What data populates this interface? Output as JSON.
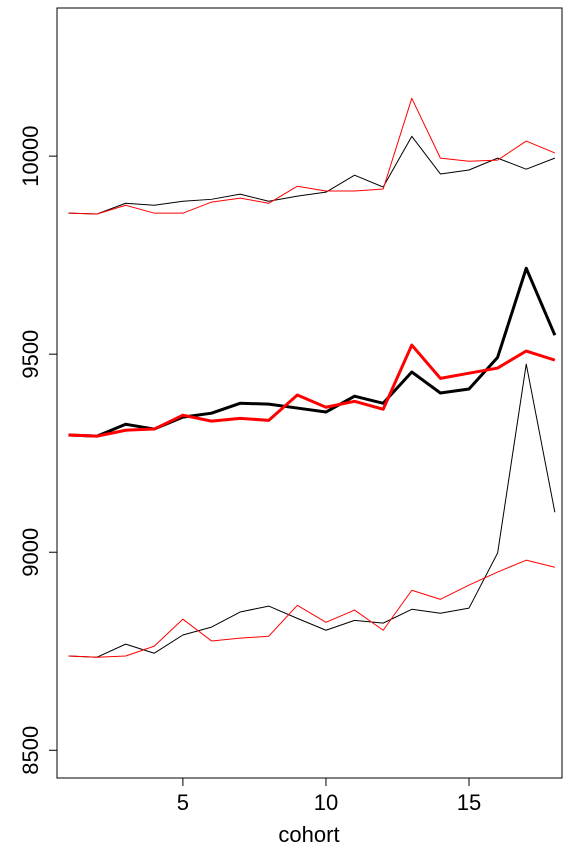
{
  "chart_data": {
    "type": "line",
    "x": [
      1,
      2,
      3,
      4,
      5,
      6,
      7,
      8,
      9,
      10,
      11,
      12,
      13,
      14,
      15,
      16,
      17,
      18
    ],
    "xlabel": "cohort",
    "xlim": [
      0.6,
      18.25
    ],
    "xticks": [
      5,
      10,
      15
    ],
    "ylim": [
      8430,
      10374
    ],
    "yticks": [
      8500,
      9000,
      9500,
      10000
    ],
    "series": [
      {
        "color": "#000000",
        "width": 1,
        "values": [
          9856,
          9854,
          9881,
          9876,
          9886,
          9891,
          9904,
          9886,
          9899,
          9909,
          9952,
          9922,
          10050,
          9955,
          9965,
          9995,
          9967,
          9995
        ]
      },
      {
        "color": "#ff0000",
        "width": 1,
        "values": [
          9856,
          9854,
          9876,
          9856,
          9856,
          9884,
          9894,
          9881,
          9924,
          9912,
          9912,
          9917,
          10146,
          9995,
          9987,
          9990,
          10038,
          10008
        ]
      },
      {
        "color": "#000000",
        "width": 3,
        "values": [
          9296,
          9293,
          9323,
          9311,
          9341,
          9351,
          9376,
          9374,
          9364,
          9354,
          9394,
          9376,
          9455,
          9402,
          9412,
          9492,
          9717,
          9548
        ]
      },
      {
        "color": "#ff0000",
        "width": 3,
        "values": [
          9296,
          9293,
          9308,
          9311,
          9346,
          9331,
          9338,
          9333,
          9397,
          9366,
          9381,
          9361,
          9523,
          9439,
          9452,
          9465,
          9508,
          9485
        ]
      },
      {
        "color": "#000000",
        "width": 1,
        "values": [
          8738,
          8735,
          8768,
          8745,
          8791,
          8811,
          8849,
          8864,
          8833,
          8803,
          8828,
          8821,
          8856,
          8846,
          8859,
          8998,
          9475,
          9101
        ]
      },
      {
        "color": "#ff0000",
        "width": 1,
        "values": [
          8738,
          8735,
          8738,
          8763,
          8831,
          8776,
          8783,
          8788,
          8866,
          8823,
          8854,
          8803,
          8904,
          8881,
          8917,
          8950,
          8980,
          8962
        ]
      }
    ]
  }
}
